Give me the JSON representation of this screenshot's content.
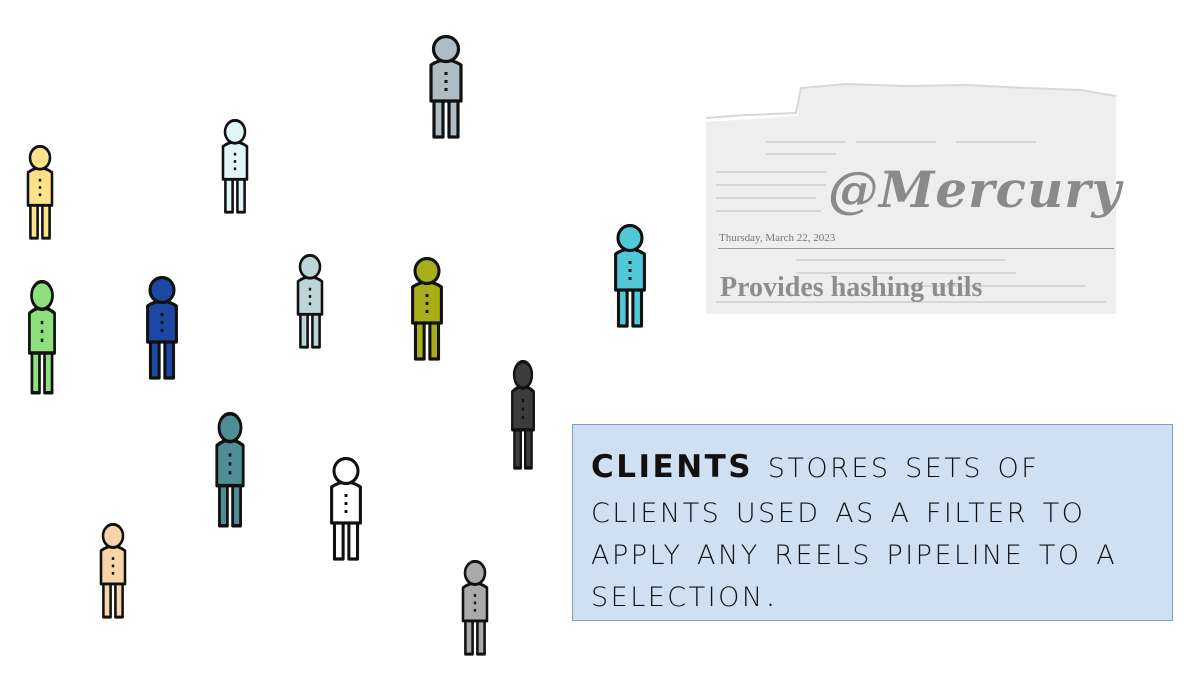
{
  "people": [
    {
      "id": "p1",
      "color": "#b0bcc4"
    },
    {
      "id": "p2",
      "color": "#e2f6f8"
    },
    {
      "id": "p3",
      "color": "#fde28a"
    },
    {
      "id": "p4",
      "color": "#8ee07f"
    },
    {
      "id": "p5",
      "color": "#1c47a3"
    },
    {
      "id": "p6",
      "color": "#bdd4d8"
    },
    {
      "id": "p7",
      "color": "#a8ae1a"
    },
    {
      "id": "p8",
      "color": "#4fc8d8"
    },
    {
      "id": "p9",
      "color": "#3c3c3c"
    },
    {
      "id": "p10",
      "color": "#4f8e94"
    },
    {
      "id": "p11",
      "color": "#ffffff"
    },
    {
      "id": "p12",
      "color": "#f8d5a8"
    },
    {
      "id": "p13",
      "color": "#aaaaaa"
    }
  ],
  "newspaper": {
    "title": "@Mercury",
    "date": "Thursday, March 22, 2023",
    "headline": "Provides hashing utils"
  },
  "caption": {
    "lead": "clients",
    "text": " stores sets of clients used as a filter to apply any reels pipeline to a selection."
  }
}
